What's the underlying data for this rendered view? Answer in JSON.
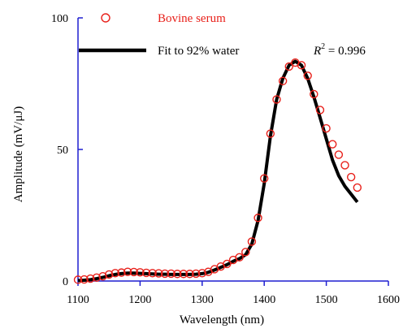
{
  "chart_data": {
    "type": "scatter",
    "title": "",
    "xlabel": "Wavelength (nm)",
    "ylabel": "Amplitude (mV/μJ)",
    "xlim": [
      1100,
      1600
    ],
    "ylim": [
      0,
      100
    ],
    "x_ticks": [
      1100,
      1200,
      1300,
      1400,
      1500,
      1600
    ],
    "y_ticks": [
      0,
      50,
      100
    ],
    "x_tick_labels": [
      "1100",
      "1200",
      "1300",
      "1400",
      "1500",
      "1600"
    ],
    "y_tick_labels": [
      "0",
      "50",
      "100"
    ],
    "grid": false,
    "legend_position": "top-left",
    "annotation": {
      "label_prefix": "R",
      "label_superscript": "2",
      "label_value": " = 0.996"
    },
    "colors": {
      "axis": "#1f1fd1",
      "points": "#e8201a",
      "fit": "#000000"
    },
    "series": [
      {
        "name": "Bovine serum",
        "kind": "markers",
        "x": [
          1100,
          1110,
          1120,
          1130,
          1140,
          1150,
          1160,
          1170,
          1180,
          1190,
          1200,
          1210,
          1220,
          1230,
          1240,
          1250,
          1260,
          1270,
          1280,
          1290,
          1300,
          1310,
          1320,
          1330,
          1340,
          1350,
          1360,
          1370,
          1380,
          1390,
          1400,
          1410,
          1420,
          1430,
          1440,
          1450,
          1460,
          1470,
          1480,
          1490,
          1500,
          1510,
          1520,
          1530,
          1540,
          1550
        ],
        "y": [
          0.5,
          0.6,
          0.9,
          1.3,
          1.8,
          2.5,
          3.0,
          3.2,
          3.5,
          3.4,
          3.3,
          3.1,
          3.0,
          2.9,
          2.8,
          2.8,
          2.7,
          2.7,
          2.7,
          2.8,
          3.0,
          3.5,
          4.5,
          5.5,
          6.5,
          8.0,
          9.0,
          11.0,
          15.0,
          24.0,
          39.0,
          56.0,
          69.0,
          76.0,
          81.5,
          83.0,
          82.0,
          78.0,
          71.0,
          65.0,
          58.0,
          52.0,
          48.0,
          44.0,
          39.5,
          35.5
        ]
      },
      {
        "name": "Fit to 92% water",
        "kind": "line",
        "x": [
          1100,
          1110,
          1120,
          1130,
          1140,
          1150,
          1160,
          1170,
          1180,
          1190,
          1200,
          1210,
          1220,
          1230,
          1240,
          1250,
          1260,
          1270,
          1280,
          1290,
          1300,
          1310,
          1320,
          1330,
          1340,
          1350,
          1360,
          1370,
          1380,
          1390,
          1400,
          1410,
          1420,
          1430,
          1440,
          1450,
          1460,
          1470,
          1480,
          1490,
          1500,
          1510,
          1520,
          1530,
          1540,
          1550
        ],
        "y": [
          0.2,
          0.3,
          0.5,
          0.9,
          1.4,
          2.0,
          2.5,
          2.8,
          3.0,
          3.0,
          2.9,
          2.8,
          2.7,
          2.6,
          2.6,
          2.5,
          2.5,
          2.5,
          2.5,
          2.6,
          2.8,
          3.3,
          4.2,
          5.2,
          6.2,
          7.5,
          8.5,
          10.0,
          14.0,
          23.0,
          37.0,
          55.0,
          69.0,
          77.0,
          82.0,
          83.5,
          82.0,
          77.0,
          70.0,
          62.0,
          54.0,
          46.0,
          40.0,
          36.0,
          33.0,
          30.0
        ]
      }
    ]
  }
}
